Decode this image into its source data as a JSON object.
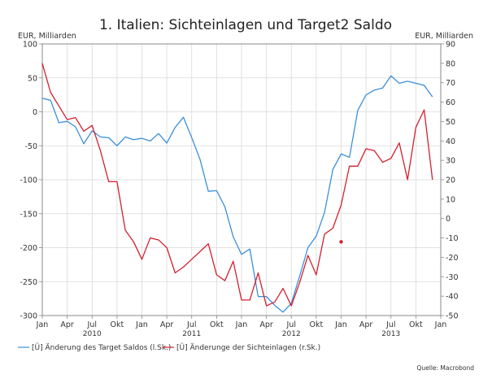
{
  "chart_data": {
    "type": "line",
    "title": "1. Italien: Sichteinlagen und Target2 Saldo",
    "left_axis": {
      "unit_label": "EUR, Milliarden",
      "ylim": [
        -300,
        100
      ],
      "ticks": [
        100,
        50,
        0,
        -50,
        -100,
        -150,
        -200,
        -250,
        -300
      ]
    },
    "right_axis": {
      "unit_label": "EUR, Milliarden",
      "ylim": [
        -50,
        90
      ],
      "ticks": [
        90,
        80,
        70,
        60,
        50,
        40,
        30,
        20,
        10,
        0,
        -10,
        -20,
        -30,
        -40,
        -50
      ]
    },
    "x_tick_labels": [
      "Jan",
      "Apr",
      "Jul",
      "Okt",
      "Jan",
      "Apr",
      "Jul",
      "Okt",
      "Jan",
      "Apr",
      "Jul",
      "Okt",
      "Jan",
      "Apr",
      "Jul",
      "Okt",
      "Jan"
    ],
    "year_labels": [
      {
        "label": "2010",
        "month_index": 6
      },
      {
        "label": "2011",
        "month_index": 18
      },
      {
        "label": "2012",
        "month_index": 30
      },
      {
        "label": "2013",
        "month_index": 42
      }
    ],
    "grid": true,
    "legend_position": "bottom-left",
    "series": [
      {
        "name": "[Ü] Änderung des Target Saldos (l.Sk.)",
        "color": "#3d8fd9",
        "axis": "left",
        "values": [
          20,
          17,
          -16,
          -14,
          -22,
          -47,
          -28,
          -37,
          -38,
          -50,
          -37,
          -41,
          -39,
          -43,
          -32,
          -46,
          -23,
          -8,
          -38,
          -70,
          -117,
          -116,
          -140,
          -184,
          -210,
          -202,
          -272,
          -272,
          -285,
          -295,
          -282,
          -242,
          -200,
          -183,
          -148,
          -85,
          -62,
          -67,
          2,
          25,
          32,
          35,
          53,
          42,
          45,
          42,
          39,
          22
        ]
      },
      {
        "name": "[Ü] Änderunge der Sichteinlagen (r.Sk.)",
        "color": "#d42030",
        "axis": "right",
        "values": [
          80,
          65,
          58,
          51,
          52,
          45,
          48,
          35,
          19,
          19,
          -6,
          -12,
          -21,
          -10,
          -11,
          -15,
          -28,
          -25,
          -21,
          -17,
          -13,
          -29,
          -32,
          -22,
          -42,
          -42,
          -28,
          -45,
          -43,
          -36,
          -45,
          -33,
          -19,
          -29,
          -8,
          -5,
          7,
          27,
          27,
          36,
          35,
          29,
          31,
          39,
          20,
          47,
          56,
          20
        ],
        "isolated_points": [
          {
            "month_index": 36,
            "value": -12
          }
        ]
      }
    ],
    "source": "Quelle: Macrobond"
  }
}
